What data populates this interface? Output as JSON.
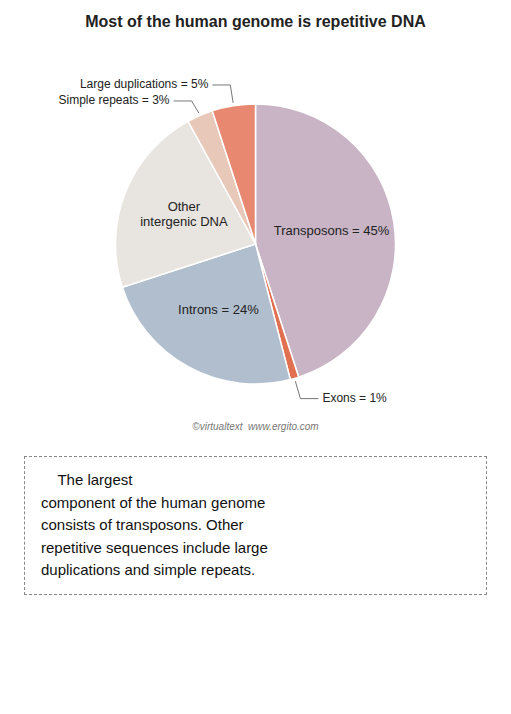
{
  "chart_data": {
    "type": "pie",
    "title": "Most of the human genome is repetitive DNA",
    "categories": [
      "Transposons = 45%",
      "Exons = 1%",
      "Introns = 24%",
      "Other\nintergenic DNA",
      "Simple repeats = 3%",
      "Large duplications = 5%"
    ],
    "values": [
      45,
      1,
      24,
      22,
      3,
      5
    ],
    "colors": [
      "#c8b4c4",
      "#e07050",
      "#b0bece",
      "#e8e4df",
      "#e8c8b8",
      "#e88870"
    ],
    "annotations": [
      "©virtualtext  www.ergito.com"
    ],
    "caption": [
      "    The largest",
      "component of the human genome",
      "consists of transposons. Other",
      "repetitive sequences include large",
      "duplications and simple repeats."
    ]
  }
}
